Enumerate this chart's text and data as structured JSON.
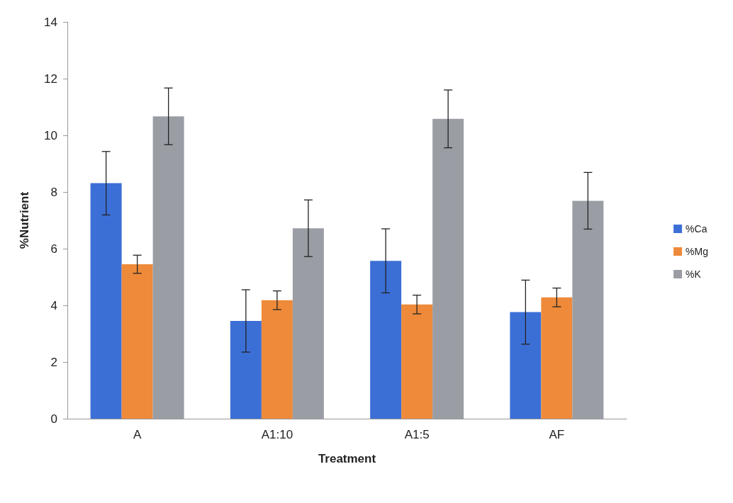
{
  "chart_data": {
    "type": "bar",
    "xlabel": "Treatment",
    "ylabel": "%Nutrient",
    "categories": [
      "A",
      "A1:10",
      "A1:5",
      "AF"
    ],
    "series": [
      {
        "name": "%Ca",
        "color": "#3c6fd6",
        "values": [
          8.31,
          3.45,
          5.57,
          3.76
        ],
        "errors": [
          1.12,
          1.1,
          1.13,
          1.13
        ]
      },
      {
        "name": "%Mg",
        "color": "#ee8a3a",
        "values": [
          5.45,
          4.18,
          4.03,
          4.28
        ],
        "errors": [
          0.32,
          0.33,
          0.33,
          0.33
        ]
      },
      {
        "name": "%K",
        "color": "#9a9ea4",
        "values": [
          10.67,
          6.72,
          10.58,
          7.69
        ],
        "errors": [
          1.0,
          1.0,
          1.02,
          1.0
        ]
      }
    ],
    "ylim": [
      0,
      14
    ],
    "yticks": [
      0,
      2,
      4,
      6,
      8,
      10,
      12,
      14
    ],
    "grid": false,
    "legend": "right"
  }
}
